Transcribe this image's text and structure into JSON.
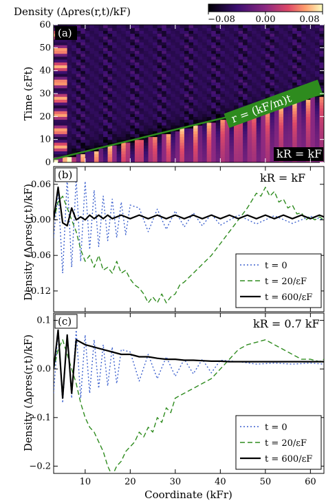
{
  "colorbar": {
    "title": "Density (Δρres(r,t)/kF)",
    "ticks": [
      -0.08,
      0.0,
      0.08
    ],
    "tick_labels": [
      "−0.08",
      "0.00",
      "0.08"
    ],
    "colormap": "magma-like (black → purple → pink → light yellow)"
  },
  "panel_a": {
    "tag": "(a)",
    "ylabel": "Time (εFt)",
    "light_cone_label": "r = (kF/m)t",
    "corner_label": "kR = kF",
    "line_color": "#2e8b1e"
  },
  "panel_b": {
    "tag": "(b)",
    "corner_label": "kR = kF",
    "ylabel": "Density (Δρres(r,t)/kF)"
  },
  "panel_c": {
    "tag": "(c)",
    "corner_label": "kR = 0.7 kF",
    "ylabel": "Density (Δρres(r,t)/kF)"
  },
  "xlabel": "Coordinate (kFr)",
  "legend": [
    "t = 0",
    "t = 20/εF",
    "t = 600/εF"
  ],
  "series_colors": [
    "#3a5fcd",
    "#2e8b1e",
    "#000000"
  ],
  "chart_data": [
    {
      "type": "heatmap",
      "title": "Density (Δρres(r,t)/kF)",
      "xlabel": "",
      "ylabel": "Time (εFt)",
      "xlim": [
        3,
        63
      ],
      "ylim": [
        0,
        60
      ],
      "xticks": [
        10,
        20,
        30,
        40,
        50,
        60
      ],
      "yticks": [
        0,
        10,
        20,
        30,
        40,
        50,
        60
      ],
      "zlim": [
        -0.08,
        0.08
      ],
      "overlay_line": {
        "label": "r = (kF/m)t",
        "slope_r_per_t": 2.1
      }
    },
    {
      "type": "line",
      "xlim": [
        3,
        63
      ],
      "ylim": [
        -0.155,
        0.09
      ],
      "yticks": [
        -0.12,
        -0.06,
        0.0,
        0.06
      ],
      "ytick_labels": [
        "−0.12",
        "−0.06",
        "0.00",
        "0.06"
      ],
      "xticks": [
        10,
        20,
        30,
        40,
        50,
        60
      ],
      "series": [
        {
          "name": "t = 0",
          "style": "dotted",
          "x": [
            3,
            4,
            5,
            6,
            7,
            8,
            9,
            10,
            11,
            12,
            13,
            14,
            15,
            16,
            17,
            18,
            19,
            20,
            22,
            24,
            26,
            28,
            30,
            32,
            34,
            36,
            38,
            40,
            44,
            48,
            52,
            56,
            60,
            63
          ],
          "y": [
            -0.03,
            0.05,
            -0.09,
            0.07,
            -0.08,
            0.07,
            -0.07,
            0.065,
            -0.05,
            0.05,
            -0.045,
            0.04,
            -0.035,
            0.035,
            -0.03,
            0.03,
            -0.025,
            0.025,
            0.02,
            -0.02,
            0.018,
            -0.016,
            0.015,
            -0.012,
            0.012,
            -0.01,
            0.01,
            -0.009,
            0.008,
            -0.007,
            0.007,
            -0.006,
            0.006,
            0.0
          ]
        },
        {
          "name": "t = 20/εF",
          "style": "dashed",
          "x": [
            3,
            4,
            5,
            6,
            7,
            8,
            9,
            10,
            11,
            12,
            13,
            14,
            15,
            16,
            17,
            18,
            19,
            20,
            21,
            22,
            23,
            24,
            25,
            26,
            27,
            28,
            29,
            30,
            31,
            32,
            34,
            36,
            38,
            40,
            42,
            44,
            46,
            48,
            49,
            50,
            51,
            52,
            53,
            54,
            55,
            56,
            57,
            58,
            59,
            60,
            61,
            62,
            63
          ],
          "y": [
            0.0,
            0.03,
            0.04,
            0.02,
            0.0,
            -0.02,
            -0.05,
            -0.07,
            -0.06,
            -0.08,
            -0.06,
            -0.085,
            -0.08,
            -0.09,
            -0.07,
            -0.09,
            -0.085,
            -0.1,
            -0.11,
            -0.115,
            -0.125,
            -0.14,
            -0.13,
            -0.14,
            -0.125,
            -0.14,
            -0.13,
            -0.125,
            -0.11,
            -0.105,
            -0.09,
            -0.075,
            -0.06,
            -0.04,
            -0.02,
            0.0,
            0.02,
            0.045,
            0.04,
            0.055,
            0.04,
            0.048,
            0.03,
            0.035,
            0.02,
            0.025,
            0.01,
            0.012,
            0.0,
            0.005,
            0.0,
            0.005,
            0.0
          ]
        },
        {
          "name": "t = 600/εF",
          "style": "solid",
          "x": [
            3,
            4,
            5,
            6,
            7,
            8,
            9,
            10,
            11,
            12,
            13,
            14,
            15,
            16,
            18,
            20,
            22,
            24,
            26,
            28,
            30,
            32,
            34,
            36,
            38,
            40,
            42,
            44,
            46,
            48,
            50,
            52,
            54,
            56,
            58,
            60,
            62,
            63
          ],
          "y": [
            0.0,
            0.055,
            -0.005,
            -0.01,
            0.02,
            0.0,
            0.005,
            0.0,
            0.008,
            0.002,
            0.008,
            0.002,
            0.008,
            0.002,
            0.008,
            0.002,
            0.008,
            0.002,
            0.008,
            0.002,
            0.008,
            0.002,
            0.008,
            0.002,
            0.008,
            0.002,
            0.008,
            0.002,
            0.008,
            0.002,
            0.008,
            0.002,
            0.008,
            0.002,
            0.008,
            0.002,
            0.008,
            0.005
          ]
        }
      ]
    },
    {
      "type": "line",
      "xlabel": "Coordinate (kFr)",
      "xlim": [
        3,
        63
      ],
      "ylim": [
        -0.215,
        0.115
      ],
      "yticks": [
        -0.2,
        -0.1,
        0.0,
        0.1
      ],
      "ytick_labels": [
        "−0.2",
        "−0.1",
        "0.0",
        "0.1"
      ],
      "xticks": [
        10,
        20,
        30,
        40,
        50,
        60
      ],
      "series": [
        {
          "name": "t = 0",
          "style": "dotted",
          "x": [
            3,
            4,
            5,
            6,
            7,
            8,
            9,
            10,
            11,
            12,
            13,
            14,
            15,
            16,
            17,
            18,
            20,
            22,
            24,
            26,
            28,
            30,
            32,
            34,
            36,
            38,
            40,
            44,
            48,
            52,
            56,
            60,
            63
          ],
          "y": [
            -0.05,
            0.08,
            -0.07,
            0.07,
            -0.06,
            0.08,
            -0.06,
            0.07,
            -0.05,
            0.06,
            -0.04,
            0.05,
            -0.035,
            0.045,
            -0.03,
            0.04,
            0.035,
            -0.025,
            0.03,
            -0.02,
            0.025,
            -0.015,
            0.02,
            -0.01,
            0.02,
            -0.008,
            0.018,
            0.015,
            0.01,
            0.012,
            0.01,
            0.012,
            0.01
          ]
        },
        {
          "name": "t = 20/εF",
          "style": "dashed",
          "x": [
            3,
            4,
            5,
            6,
            7,
            8,
            9,
            10,
            11,
            12,
            13,
            14,
            15,
            16,
            17,
            18,
            19,
            20,
            21,
            22,
            23,
            24,
            25,
            26,
            27,
            28,
            29,
            30,
            32,
            34,
            36,
            38,
            40,
            42,
            44,
            46,
            48,
            50,
            52,
            54,
            56,
            58,
            60,
            62,
            63
          ],
          "y": [
            0.0,
            0.04,
            0.06,
            0.03,
            0.0,
            -0.03,
            -0.07,
            -0.1,
            -0.12,
            -0.13,
            -0.15,
            -0.17,
            -0.2,
            -0.22,
            -0.2,
            -0.19,
            -0.17,
            -0.16,
            -0.15,
            -0.13,
            -0.14,
            -0.12,
            -0.13,
            -0.1,
            -0.11,
            -0.08,
            -0.09,
            -0.06,
            -0.05,
            -0.04,
            -0.03,
            -0.02,
            0.0,
            0.02,
            0.04,
            0.05,
            0.055,
            0.06,
            0.05,
            0.04,
            0.03,
            0.02,
            0.02,
            0.015,
            0.02
          ]
        },
        {
          "name": "t = 600/εF",
          "style": "solid",
          "x": [
            3,
            4,
            5,
            6,
            7,
            8,
            10,
            12,
            14,
            16,
            18,
            20,
            22,
            24,
            26,
            28,
            30,
            32,
            34,
            36,
            38,
            40,
            42,
            44,
            46,
            48,
            50,
            52,
            54,
            56,
            58,
            60,
            62,
            63
          ],
          "y": [
            0.0,
            0.08,
            -0.06,
            0.07,
            -0.05,
            0.06,
            0.05,
            0.045,
            0.04,
            0.035,
            0.03,
            0.03,
            0.025,
            0.025,
            0.022,
            0.02,
            0.02,
            0.018,
            0.018,
            0.017,
            0.016,
            0.016,
            0.015,
            0.015,
            0.015,
            0.015,
            0.015,
            0.015,
            0.015,
            0.015,
            0.015,
            0.015,
            0.015,
            0.015
          ]
        }
      ]
    }
  ]
}
